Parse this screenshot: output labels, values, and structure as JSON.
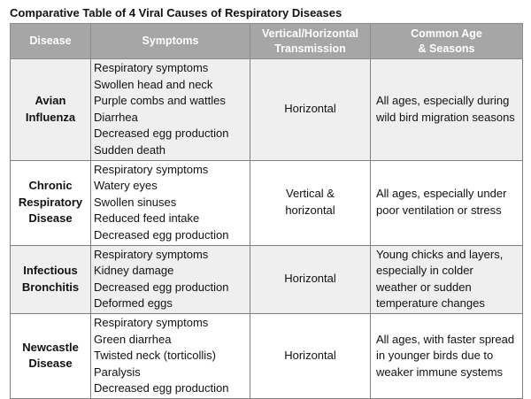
{
  "title": "Comparative Table of 4 Viral Causes of Respiratory Diseases",
  "headers": {
    "disease": "Disease",
    "symptoms": "Symptoms",
    "transmission_l1": "Vertical/Horizontal",
    "transmission_l2": "Transmission",
    "age_l1": "Common Age",
    "age_l2": "& Seasons"
  },
  "rows": [
    {
      "disease_l1": "Avian",
      "disease_l2": "Influenza",
      "disease_l3": "",
      "symptoms": [
        "Respiratory symptoms",
        "Swollen head and neck",
        "Purple combs and wattles",
        "Diarrhea",
        "Decreased egg production",
        "Sudden death"
      ],
      "trans_l1": "Horizontal",
      "trans_l2": "",
      "age": "All ages, especially during wild bird migration seasons"
    },
    {
      "disease_l1": "Chronic",
      "disease_l2": "Respiratory",
      "disease_l3": "Disease",
      "symptoms": [
        "Respiratory symptoms",
        "Watery eyes",
        "Swollen sinuses",
        "Reduced feed intake",
        "Decreased egg production"
      ],
      "trans_l1": "Vertical &",
      "trans_l2": "horizontal",
      "age": "All ages, especially under poor ventilation or stress"
    },
    {
      "disease_l1": "Infectious",
      "disease_l2": "Bronchitis",
      "disease_l3": "",
      "symptoms": [
        "Respiratory symptoms",
        "Kidney damage",
        "Decreased egg production",
        "Deformed eggs"
      ],
      "trans_l1": "Horizontal",
      "trans_l2": "",
      "age": "Young chicks and layers, especially in colder weather or sudden temperature changes"
    },
    {
      "disease_l1": "Newcastle",
      "disease_l2": "Disease",
      "disease_l3": "",
      "symptoms": [
        "Respiratory symptoms",
        "Green diarrhea",
        "Twisted neck (torticollis)",
        "Paralysis",
        "Decreased egg production"
      ],
      "trans_l1": "Horizontal",
      "trans_l2": "",
      "age": "All ages, with faster spread in younger birds due to weaker immune systems"
    }
  ]
}
